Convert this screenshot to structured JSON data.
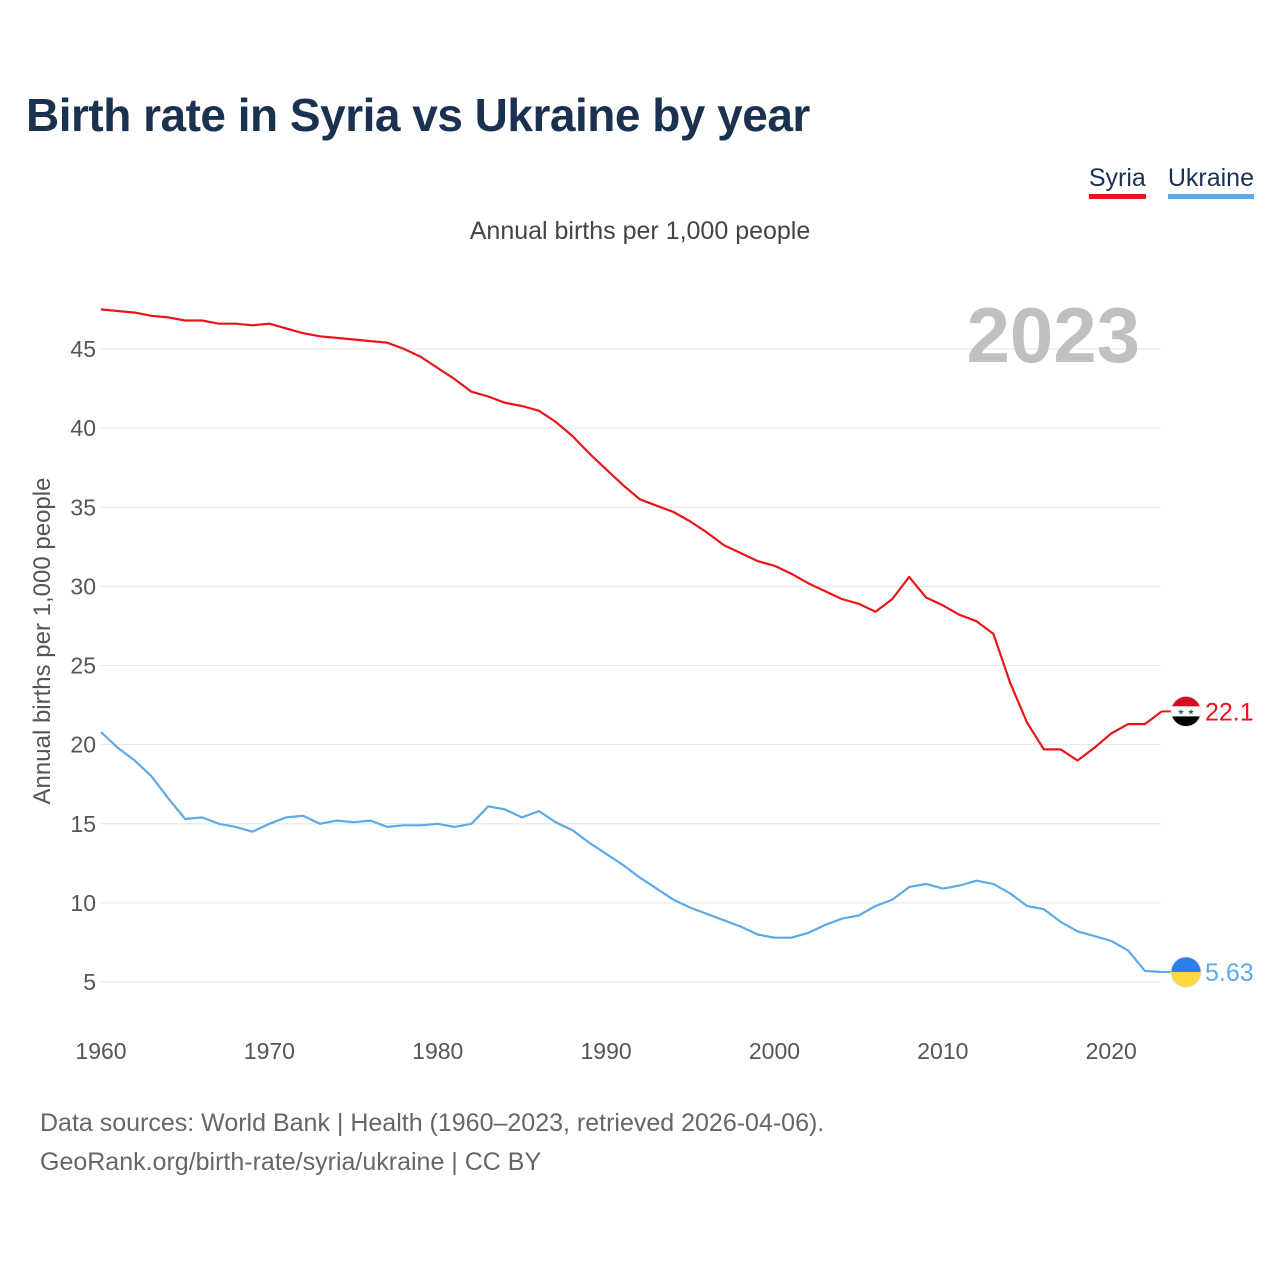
{
  "header": {
    "title": "Birth rate in Syria vs Ukraine by year"
  },
  "legend": [
    {
      "label": "Syria",
      "color": "#e8161a"
    },
    {
      "label": "Ukraine",
      "color": "#5ea9ea"
    }
  ],
  "subtitle": "Annual births per 1,000 people",
  "footer": {
    "line1": "Data sources: World Bank | Health (1960–2023, retrieved 2026-04-06).",
    "line2": "GeoRank.org/birth-rate/syria/ukraine | CC BY"
  },
  "chart_data": {
    "type": "line",
    "title": "Birth rate in Syria vs Ukraine by year",
    "subtitle": "Annual births per 1,000 people",
    "xlabel": "",
    "ylabel": "Annual births per 1,000 people",
    "xlim": [
      1960,
      2024.5
    ],
    "ylim": [
      2,
      48
    ],
    "grid": true,
    "legend_position": "top-right",
    "year_label": "2023",
    "x_ticks": [
      1960,
      1970,
      1980,
      1990,
      2000,
      2010,
      2020
    ],
    "y_ticks": [
      5,
      10,
      15,
      20,
      25,
      30,
      35,
      40,
      45
    ],
    "x": [
      1960,
      1961,
      1962,
      1963,
      1964,
      1965,
      1966,
      1967,
      1968,
      1969,
      1970,
      1971,
      1972,
      1973,
      1974,
      1975,
      1976,
      1977,
      1978,
      1979,
      1980,
      1981,
      1982,
      1983,
      1984,
      1985,
      1986,
      1987,
      1988,
      1989,
      1990,
      1991,
      1992,
      1993,
      1994,
      1995,
      1996,
      1997,
      1998,
      1999,
      2000,
      2001,
      2002,
      2003,
      2004,
      2005,
      2006,
      2007,
      2008,
      2009,
      2010,
      2011,
      2012,
      2013,
      2014,
      2015,
      2016,
      2017,
      2018,
      2019,
      2020,
      2021,
      2022,
      2023
    ],
    "series": [
      {
        "name": "Syria",
        "color": "#e8161a",
        "end_label": "22.1",
        "icon": "syria-flag-icon",
        "values": [
          47.5,
          47.4,
          47.3,
          47.1,
          47.0,
          46.8,
          46.8,
          46.6,
          46.6,
          46.5,
          46.6,
          46.3,
          46.0,
          45.8,
          45.7,
          45.6,
          45.5,
          45.4,
          45.0,
          44.5,
          43.8,
          43.1,
          42.3,
          42.0,
          41.6,
          41.4,
          41.1,
          40.4,
          39.5,
          38.4,
          37.4,
          36.4,
          35.5,
          35.1,
          34.7,
          34.1,
          33.4,
          32.6,
          32.1,
          31.6,
          31.3,
          30.8,
          30.2,
          29.7,
          29.2,
          28.9,
          28.4,
          29.2,
          30.6,
          29.3,
          28.8,
          28.2,
          27.8,
          27.0,
          23.9,
          21.4,
          19.7,
          19.7,
          19.0,
          19.8,
          20.7,
          21.3,
          21.3,
          22.1
        ]
      },
      {
        "name": "Ukraine",
        "color": "#5ea9ea",
        "end_label": "5.63",
        "icon": "ukraine-flag-icon",
        "values": [
          20.8,
          19.8,
          19.0,
          18.0,
          16.6,
          15.3,
          15.4,
          15.0,
          14.8,
          14.5,
          15.0,
          15.4,
          15.5,
          15.0,
          15.2,
          15.1,
          15.2,
          14.8,
          14.9,
          14.9,
          15.0,
          14.8,
          15.0,
          16.1,
          15.9,
          15.4,
          15.8,
          15.1,
          14.6,
          13.8,
          13.1,
          12.4,
          11.6,
          10.9,
          10.2,
          9.7,
          9.3,
          8.9,
          8.5,
          8.0,
          7.8,
          7.8,
          8.1,
          8.6,
          9.0,
          9.2,
          9.8,
          10.2,
          11.0,
          11.2,
          10.9,
          11.1,
          11.4,
          11.2,
          10.6,
          9.8,
          9.6,
          8.8,
          8.2,
          7.9,
          7.6,
          7.0,
          5.7,
          5.63
        ]
      }
    ]
  }
}
